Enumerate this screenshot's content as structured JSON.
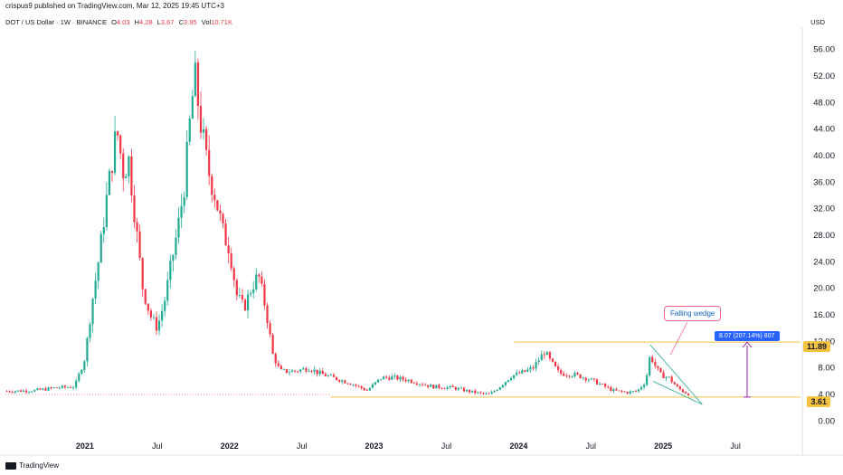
{
  "header": {
    "publisher_line": "crispus9 published on TradingView.com, Mar 12, 2025 19:45 UTC+3",
    "symbol": "DOT / US Dollar · 1W · BINANCE",
    "ohlc": [
      {
        "key": "O",
        "value": "4.03"
      },
      {
        "key": "H",
        "value": "4.28"
      },
      {
        "key": "L",
        "value": "3.67"
      },
      {
        "key": "C",
        "value": "3.95"
      }
    ],
    "vol_label": "Vol",
    "vol_value": "10.71K",
    "currency": "USD"
  },
  "footer": {
    "brand": "TradingView"
  },
  "annotations": {
    "callout": "Falling wedge",
    "measure": "8.07 (207.14%) 807",
    "upper_level": "11.89",
    "lower_level": "3.61"
  },
  "colors": {
    "up": "#22ab94",
    "down": "#f23645",
    "level": "#f5c242",
    "measure": "#ab47bc",
    "wedge": "#22ab94"
  },
  "chart_data": {
    "type": "candlestick",
    "title": "DOT / US Dollar · 1W · BINANCE",
    "ylabel": "USD",
    "ylim": [
      -2,
      58
    ],
    "y_ticks": [
      0,
      4,
      8,
      12,
      16,
      20,
      24,
      28,
      32,
      36,
      40,
      44,
      48,
      52,
      56
    ],
    "x_tick_labels": [
      "2021",
      "Jul",
      "2022",
      "Jul",
      "2023",
      "Jul",
      "2024",
      "Jul",
      "2025",
      "Jul"
    ],
    "x_tick_positions": [
      2021.0,
      2021.5,
      2022.0,
      2022.5,
      2023.0,
      2023.5,
      2024.0,
      2024.5,
      2025.0,
      2025.5
    ],
    "xlim": [
      2020.45,
      2025.95
    ],
    "horizontal_levels": [
      11.89,
      3.61
    ],
    "price_anchors": [
      [
        2020.46,
        4.5
      ],
      [
        2020.65,
        4.6
      ],
      [
        2020.8,
        5.0
      ],
      [
        2020.93,
        5.2
      ],
      [
        2021.0,
        9.5
      ],
      [
        2021.05,
        18.0
      ],
      [
        2021.1,
        25.0
      ],
      [
        2021.14,
        32.0
      ],
      [
        2021.18,
        38.0
      ],
      [
        2021.22,
        44.0
      ],
      [
        2021.27,
        37.0
      ],
      [
        2021.3,
        40.0
      ],
      [
        2021.35,
        30.0
      ],
      [
        2021.4,
        20.0
      ],
      [
        2021.45,
        16.0
      ],
      [
        2021.5,
        14.0
      ],
      [
        2021.55,
        18.0
      ],
      [
        2021.6,
        24.0
      ],
      [
        2021.65,
        30.0
      ],
      [
        2021.69,
        36.0
      ],
      [
        2021.73,
        46.0
      ],
      [
        2021.76,
        52.0
      ],
      [
        2021.8,
        45.0
      ],
      [
        2021.85,
        38.0
      ],
      [
        2021.9,
        34.0
      ],
      [
        2021.96,
        28.0
      ],
      [
        2022.0,
        26.0
      ],
      [
        2022.05,
        19.0
      ],
      [
        2022.1,
        17.0
      ],
      [
        2022.15,
        20.0
      ],
      [
        2022.2,
        22.0
      ],
      [
        2022.25,
        17.0
      ],
      [
        2022.3,
        10.0
      ],
      [
        2022.35,
        7.5
      ],
      [
        2022.45,
        7.5
      ],
      [
        2022.55,
        8.0
      ],
      [
        2022.62,
        7.2
      ],
      [
        2022.75,
        6.3
      ],
      [
        2022.85,
        5.6
      ],
      [
        2022.95,
        4.6
      ],
      [
        2023.05,
        6.5
      ],
      [
        2023.12,
        6.6
      ],
      [
        2023.25,
        6.1
      ],
      [
        2023.4,
        5.2
      ],
      [
        2023.55,
        5.0
      ],
      [
        2023.65,
        4.5
      ],
      [
        2023.75,
        4.1
      ],
      [
        2023.8,
        4.0
      ],
      [
        2023.87,
        5.2
      ],
      [
        2023.95,
        6.8
      ],
      [
        2024.05,
        7.5
      ],
      [
        2024.1,
        8.0
      ],
      [
        2024.18,
        10.5
      ],
      [
        2024.22,
        9.0
      ],
      [
        2024.28,
        7.2
      ],
      [
        2024.38,
        7.0
      ],
      [
        2024.48,
        6.4
      ],
      [
        2024.55,
        5.7
      ],
      [
        2024.65,
        4.6
      ],
      [
        2024.75,
        4.3
      ],
      [
        2024.82,
        4.5
      ],
      [
        2024.88,
        6.0
      ],
      [
        2024.91,
        10.0
      ],
      [
        2024.94,
        8.5
      ],
      [
        2024.98,
        7.0
      ],
      [
        2025.04,
        6.5
      ],
      [
        2025.1,
        5.0
      ],
      [
        2025.15,
        4.3
      ],
      [
        2025.19,
        3.95
      ]
    ]
  }
}
